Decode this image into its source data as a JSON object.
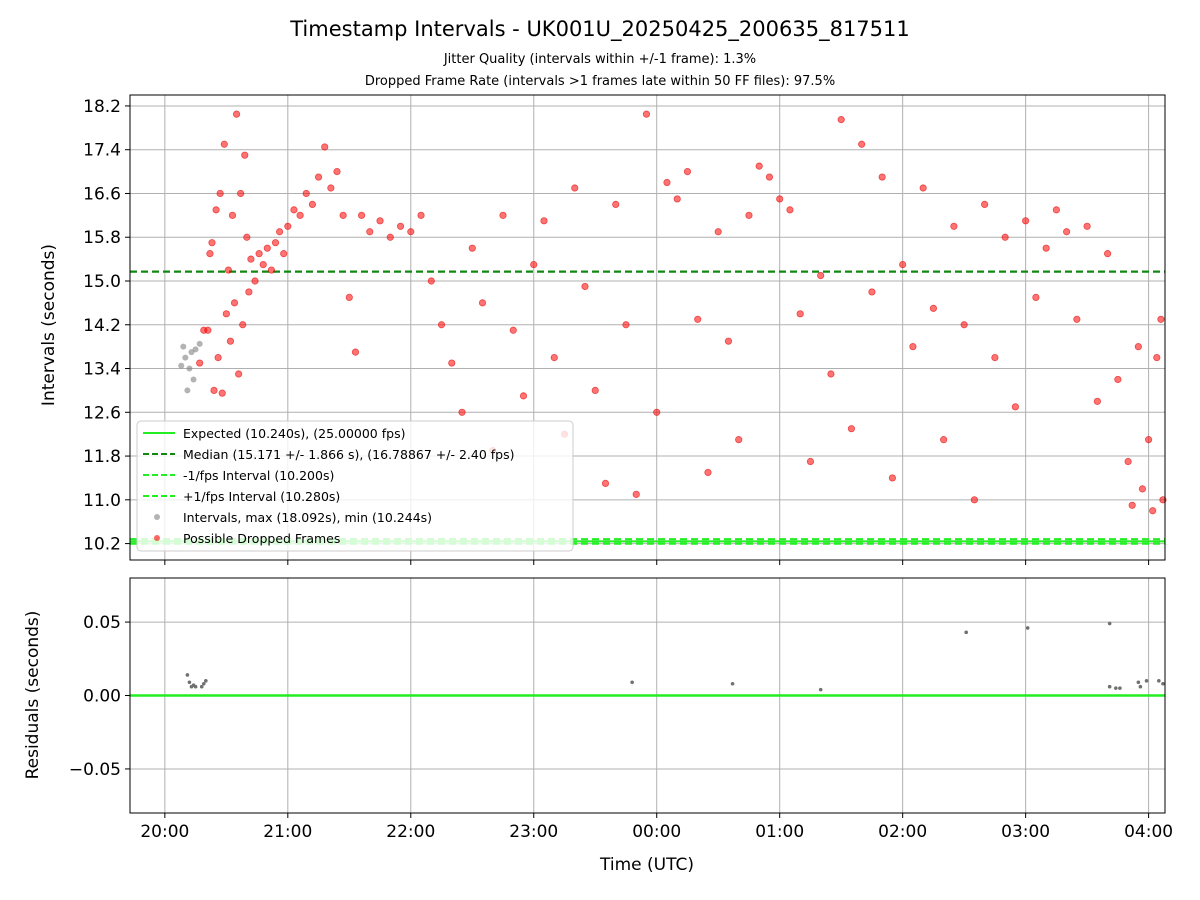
{
  "chart_data": [
    {
      "type": "scatter",
      "title": "Timestamp Intervals - UK001U_20250425_200635_817511",
      "subtitle_lines": [
        "Jitter Quality (intervals within +/-1 frame): 1.3%",
        "Dropped Frame Rate (intervals >1 frames late within 50 FF files): 97.5%"
      ],
      "ylabel": "Intervals (seconds)",
      "xlabel": "",
      "x_range": [
        "2025-04-25T19:43",
        "2025-04-26T04:08"
      ],
      "ylim": [
        9.9,
        18.4
      ],
      "yticks": [
        "10.2",
        "11.0",
        "11.8",
        "12.6",
        "13.4",
        "14.2",
        "15.0",
        "15.8",
        "16.6",
        "17.4",
        "18.2"
      ],
      "grid": true,
      "legend_placement": "lower-left",
      "legend": [
        "Expected (10.240s), (25.00000 fps)",
        "Median (15.171 +/- 1.866 s), (16.78867 +/- 2.40 fps)",
        "-1/fps Interval (10.200s)",
        "+1/fps Interval (10.280s)",
        "Intervals, max (18.092s), min (10.244s)",
        "Possible Dropped Frames"
      ],
      "reference_lines": [
        {
          "name": "Expected",
          "y": 10.24,
          "color": "#22ee22",
          "style": "solid"
        },
        {
          "name": "Median",
          "y": 15.171,
          "color": "#118811",
          "style": "dashed"
        },
        {
          "name": "-1/fps Interval",
          "y": 10.2,
          "color": "#22ee22",
          "style": "dashed"
        },
        {
          "name": "+1/fps Interval",
          "y": 10.28,
          "color": "#22ee22",
          "style": "dashed"
        }
      ],
      "series": [
        {
          "name": "Intervals, max (18.092s), min (10.244s)",
          "color": "#808080",
          "points": [
            {
              "x": "2025-04-25T20:08",
              "y": 13.45
            },
            {
              "x": "2025-04-25T20:09",
              "y": 13.8
            },
            {
              "x": "2025-04-25T20:10",
              "y": 13.6
            },
            {
              "x": "2025-04-25T20:11",
              "y": 13.0
            },
            {
              "x": "2025-04-25T20:12",
              "y": 13.4
            },
            {
              "x": "2025-04-25T20:13",
              "y": 13.7
            },
            {
              "x": "2025-04-25T20:14",
              "y": 13.2
            },
            {
              "x": "2025-04-25T20:15",
              "y": 13.75
            },
            {
              "x": "2025-04-25T20:17",
              "y": 13.85
            }
          ]
        },
        {
          "name": "Possible Dropped Frames",
          "color": "#ff0000",
          "points": [
            {
              "x": "2025-04-25T20:17",
              "y": 13.5
            },
            {
              "x": "2025-04-25T20:19",
              "y": 14.1
            },
            {
              "x": "2025-04-25T20:21",
              "y": 14.1
            },
            {
              "x": "2025-04-25T20:22",
              "y": 15.5
            },
            {
              "x": "2025-04-25T20:23",
              "y": 15.7
            },
            {
              "x": "2025-04-25T20:24",
              "y": 13.0
            },
            {
              "x": "2025-04-25T20:25",
              "y": 16.3
            },
            {
              "x": "2025-04-25T20:26",
              "y": 13.6
            },
            {
              "x": "2025-04-25T20:27",
              "y": 16.6
            },
            {
              "x": "2025-04-25T20:28",
              "y": 12.95
            },
            {
              "x": "2025-04-25T20:29",
              "y": 17.5
            },
            {
              "x": "2025-04-25T20:30",
              "y": 14.4
            },
            {
              "x": "2025-04-25T20:31",
              "y": 15.2
            },
            {
              "x": "2025-04-25T20:32",
              "y": 13.9
            },
            {
              "x": "2025-04-25T20:33",
              "y": 16.2
            },
            {
              "x": "2025-04-25T20:34",
              "y": 14.6
            },
            {
              "x": "2025-04-25T20:35",
              "y": 18.05
            },
            {
              "x": "2025-04-25T20:36",
              "y": 13.3
            },
            {
              "x": "2025-04-25T20:37",
              "y": 16.6
            },
            {
              "x": "2025-04-25T20:38",
              "y": 14.2
            },
            {
              "x": "2025-04-25T20:39",
              "y": 17.3
            },
            {
              "x": "2025-04-25T20:40",
              "y": 15.8
            },
            {
              "x": "2025-04-25T20:41",
              "y": 14.8
            },
            {
              "x": "2025-04-25T20:42",
              "y": 15.4
            },
            {
              "x": "2025-04-25T20:44",
              "y": 15.0
            },
            {
              "x": "2025-04-25T20:46",
              "y": 15.5
            },
            {
              "x": "2025-04-25T20:48",
              "y": 15.3
            },
            {
              "x": "2025-04-25T20:50",
              "y": 15.6
            },
            {
              "x": "2025-04-25T20:52",
              "y": 15.2
            },
            {
              "x": "2025-04-25T20:54",
              "y": 15.7
            },
            {
              "x": "2025-04-25T20:56",
              "y": 15.9
            },
            {
              "x": "2025-04-25T20:58",
              "y": 15.5
            },
            {
              "x": "2025-04-25T21:00",
              "y": 16.0
            },
            {
              "x": "2025-04-25T21:03",
              "y": 16.3
            },
            {
              "x": "2025-04-25T21:06",
              "y": 16.2
            },
            {
              "x": "2025-04-25T21:09",
              "y": 16.6
            },
            {
              "x": "2025-04-25T21:12",
              "y": 16.4
            },
            {
              "x": "2025-04-25T21:15",
              "y": 16.9
            },
            {
              "x": "2025-04-25T21:18",
              "y": 17.45
            },
            {
              "x": "2025-04-25T21:21",
              "y": 16.7
            },
            {
              "x": "2025-04-25T21:24",
              "y": 17.0
            },
            {
              "x": "2025-04-25T21:27",
              "y": 16.2
            },
            {
              "x": "2025-04-25T21:30",
              "y": 14.7
            },
            {
              "x": "2025-04-25T21:33",
              "y": 13.7
            },
            {
              "x": "2025-04-25T21:36",
              "y": 16.2
            },
            {
              "x": "2025-04-25T21:40",
              "y": 15.9
            },
            {
              "x": "2025-04-25T21:45",
              "y": 16.1
            },
            {
              "x": "2025-04-25T21:50",
              "y": 15.8
            },
            {
              "x": "2025-04-25T21:55",
              "y": 16.0
            },
            {
              "x": "2025-04-25T22:00",
              "y": 15.9
            },
            {
              "x": "2025-04-25T22:05",
              "y": 16.2
            },
            {
              "x": "2025-04-25T22:10",
              "y": 15.0
            },
            {
              "x": "2025-04-25T22:15",
              "y": 14.2
            },
            {
              "x": "2025-04-25T22:20",
              "y": 13.5
            },
            {
              "x": "2025-04-25T22:25",
              "y": 12.6
            },
            {
              "x": "2025-04-25T22:30",
              "y": 15.6
            },
            {
              "x": "2025-04-25T22:35",
              "y": 14.6
            },
            {
              "x": "2025-04-25T22:40",
              "y": 11.9
            },
            {
              "x": "2025-04-25T22:45",
              "y": 16.2
            },
            {
              "x": "2025-04-25T22:50",
              "y": 14.1
            },
            {
              "x": "2025-04-25T22:55",
              "y": 12.9
            },
            {
              "x": "2025-04-25T23:00",
              "y": 15.3
            },
            {
              "x": "2025-04-25T23:05",
              "y": 16.1
            },
            {
              "x": "2025-04-25T23:10",
              "y": 13.6
            },
            {
              "x": "2025-04-25T23:15",
              "y": 12.2
            },
            {
              "x": "2025-04-25T23:20",
              "y": 16.7
            },
            {
              "x": "2025-04-25T23:25",
              "y": 14.9
            },
            {
              "x": "2025-04-25T23:30",
              "y": 13.0
            },
            {
              "x": "2025-04-25T23:35",
              "y": 11.3
            },
            {
              "x": "2025-04-25T23:40",
              "y": 16.4
            },
            {
              "x": "2025-04-25T23:45",
              "y": 14.2
            },
            {
              "x": "2025-04-25T23:50",
              "y": 11.1
            },
            {
              "x": "2025-04-25T23:55",
              "y": 18.05
            },
            {
              "x": "2025-04-26T00:00",
              "y": 12.6
            },
            {
              "x": "2025-04-26T00:05",
              "y": 16.8
            },
            {
              "x": "2025-04-26T00:10",
              "y": 16.5
            },
            {
              "x": "2025-04-26T00:15",
              "y": 17.0
            },
            {
              "x": "2025-04-26T00:20",
              "y": 14.3
            },
            {
              "x": "2025-04-26T00:25",
              "y": 11.5
            },
            {
              "x": "2025-04-26T00:30",
              "y": 15.9
            },
            {
              "x": "2025-04-26T00:35",
              "y": 13.9
            },
            {
              "x": "2025-04-26T00:40",
              "y": 12.1
            },
            {
              "x": "2025-04-26T00:45",
              "y": 16.2
            },
            {
              "x": "2025-04-26T00:50",
              "y": 17.1
            },
            {
              "x": "2025-04-26T00:55",
              "y": 16.9
            },
            {
              "x": "2025-04-26T01:00",
              "y": 16.5
            },
            {
              "x": "2025-04-26T01:05",
              "y": 16.3
            },
            {
              "x": "2025-04-26T01:10",
              "y": 14.4
            },
            {
              "x": "2025-04-26T01:15",
              "y": 11.7
            },
            {
              "x": "2025-04-26T01:20",
              "y": 15.1
            },
            {
              "x": "2025-04-26T01:25",
              "y": 13.3
            },
            {
              "x": "2025-04-26T01:30",
              "y": 17.95
            },
            {
              "x": "2025-04-26T01:35",
              "y": 12.3
            },
            {
              "x": "2025-04-26T01:40",
              "y": 17.5
            },
            {
              "x": "2025-04-26T01:45",
              "y": 14.8
            },
            {
              "x": "2025-04-26T01:50",
              "y": 16.9
            },
            {
              "x": "2025-04-26T01:55",
              "y": 11.4
            },
            {
              "x": "2025-04-26T02:00",
              "y": 15.3
            },
            {
              "x": "2025-04-26T02:05",
              "y": 13.8
            },
            {
              "x": "2025-04-26T02:10",
              "y": 16.7
            },
            {
              "x": "2025-04-26T02:15",
              "y": 14.5
            },
            {
              "x": "2025-04-26T02:20",
              "y": 12.1
            },
            {
              "x": "2025-04-26T02:25",
              "y": 16.0
            },
            {
              "x": "2025-04-26T02:30",
              "y": 14.2
            },
            {
              "x": "2025-04-26T02:35",
              "y": 11.0
            },
            {
              "x": "2025-04-26T02:40",
              "y": 16.4
            },
            {
              "x": "2025-04-26T02:45",
              "y": 13.6
            },
            {
              "x": "2025-04-26T02:50",
              "y": 15.8
            },
            {
              "x": "2025-04-26T02:55",
              "y": 12.7
            },
            {
              "x": "2025-04-26T03:00",
              "y": 16.1
            },
            {
              "x": "2025-04-26T03:05",
              "y": 14.7
            },
            {
              "x": "2025-04-26T03:10",
              "y": 15.6
            },
            {
              "x": "2025-04-26T03:15",
              "y": 16.3
            },
            {
              "x": "2025-04-26T03:20",
              "y": 15.9
            },
            {
              "x": "2025-04-26T03:25",
              "y": 14.3
            },
            {
              "x": "2025-04-26T03:30",
              "y": 16.0
            },
            {
              "x": "2025-04-26T03:35",
              "y": 12.8
            },
            {
              "x": "2025-04-26T03:40",
              "y": 15.5
            },
            {
              "x": "2025-04-26T03:45",
              "y": 13.2
            },
            {
              "x": "2025-04-26T03:50",
              "y": 11.7
            },
            {
              "x": "2025-04-26T03:52",
              "y": 10.9
            },
            {
              "x": "2025-04-26T03:55",
              "y": 13.8
            },
            {
              "x": "2025-04-26T03:57",
              "y": 11.2
            },
            {
              "x": "2025-04-26T04:00",
              "y": 12.1
            },
            {
              "x": "2025-04-26T04:02",
              "y": 10.8
            },
            {
              "x": "2025-04-26T04:04",
              "y": 13.6
            },
            {
              "x": "2025-04-26T04:06",
              "y": 14.3
            },
            {
              "x": "2025-04-26T04:07",
              "y": 11.0
            }
          ]
        }
      ]
    },
    {
      "type": "scatter",
      "title": "",
      "ylabel": "Residuals (seconds)",
      "xlabel": "Time (UTC)",
      "x_range": [
        "2025-04-25T19:43",
        "2025-04-26T04:08"
      ],
      "xticks": [
        "20:00",
        "21:00",
        "22:00",
        "23:00",
        "00:00",
        "01:00",
        "02:00",
        "03:00",
        "04:00"
      ],
      "ylim": [
        -0.08,
        0.08
      ],
      "yticks": [
        "0.05",
        "0.00",
        "−0.05"
      ],
      "grid": true,
      "reference_lines": [
        {
          "y": 0.0,
          "color": "#22ee22",
          "style": "solid"
        }
      ],
      "series": [
        {
          "color": "#707070",
          "points": [
            {
              "x": "2025-04-25T20:11",
              "y": 0.014
            },
            {
              "x": "2025-04-25T20:12",
              "y": 0.009
            },
            {
              "x": "2025-04-25T20:13",
              "y": 0.006
            },
            {
              "x": "2025-04-25T20:14",
              "y": 0.007
            },
            {
              "x": "2025-04-25T20:15",
              "y": 0.006
            },
            {
              "x": "2025-04-25T20:18",
              "y": 0.006
            },
            {
              "x": "2025-04-25T20:19",
              "y": 0.008
            },
            {
              "x": "2025-04-25T20:20",
              "y": 0.01
            },
            {
              "x": "2025-04-25T23:48",
              "y": 0.009
            },
            {
              "x": "2025-04-26T00:37",
              "y": 0.008
            },
            {
              "x": "2025-04-26T01:20",
              "y": 0.004
            },
            {
              "x": "2025-04-26T02:31",
              "y": 0.043
            },
            {
              "x": "2025-04-26T03:01",
              "y": 0.046
            },
            {
              "x": "2025-04-26T03:41",
              "y": 0.049
            },
            {
              "x": "2025-04-26T03:41",
              "y": 0.006
            },
            {
              "x": "2025-04-26T03:44",
              "y": 0.005
            },
            {
              "x": "2025-04-26T03:46",
              "y": 0.005
            },
            {
              "x": "2025-04-26T03:55",
              "y": 0.009
            },
            {
              "x": "2025-04-26T03:56",
              "y": 0.006
            },
            {
              "x": "2025-04-26T03:59",
              "y": 0.01
            },
            {
              "x": "2025-04-26T04:05",
              "y": 0.01
            },
            {
              "x": "2025-04-26T04:07",
              "y": 0.008
            }
          ]
        }
      ]
    }
  ]
}
